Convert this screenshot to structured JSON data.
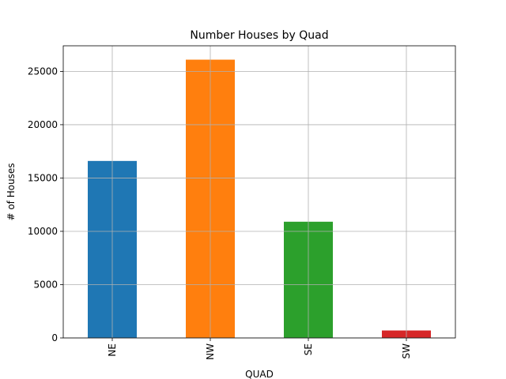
{
  "chart_data": {
    "type": "bar",
    "title": "Number Houses by Quad",
    "xlabel": "QUAD",
    "ylabel": "# of Houses",
    "categories": [
      "NE",
      "NW",
      "SE",
      "SW"
    ],
    "values": [
      16600,
      26100,
      10900,
      700
    ],
    "colors": [
      "#1f77b4",
      "#ff7f0e",
      "#2ca02c",
      "#d62728"
    ],
    "ylim": [
      0,
      27400
    ],
    "yticks": [
      0,
      5000,
      10000,
      15000,
      20000,
      25000
    ],
    "ytick_labels": [
      "0",
      "5000",
      "10000",
      "15000",
      "20000",
      "25000"
    ],
    "grid": true,
    "legend": false
  }
}
